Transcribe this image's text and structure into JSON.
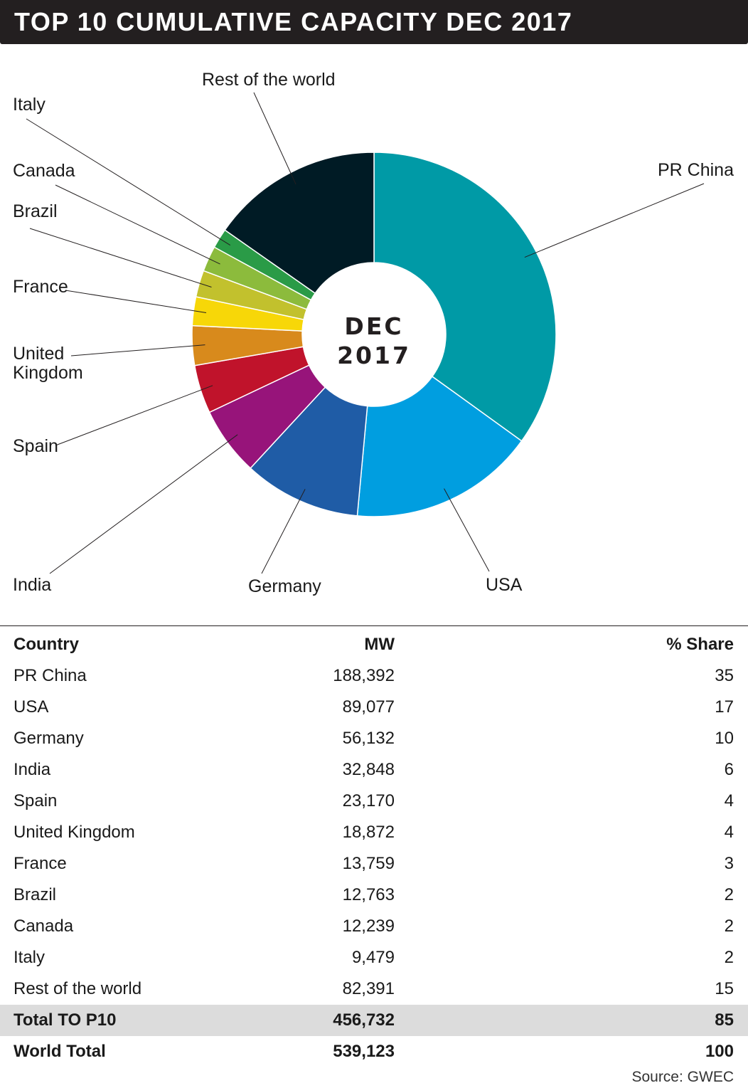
{
  "title": "TOP 10 CUMULATIVE CAPACITY DEC 2017",
  "chart_data": {
    "type": "pie",
    "donut": true,
    "center_label": [
      "DEC",
      "2017"
    ],
    "slices": [
      {
        "label": "PR China",
        "value": 188392,
        "color": "#009aa6"
      },
      {
        "label": "USA",
        "value": 89077,
        "color": "#009ee0"
      },
      {
        "label": "Germany",
        "value": 56132,
        "color": "#1f5ca6"
      },
      {
        "label": "India",
        "value": 32848,
        "color": "#97147a"
      },
      {
        "label": "Spain",
        "value": 23170,
        "color": "#c0132b"
      },
      {
        "label": "United Kingdom",
        "value": 18872,
        "color": "#d88a1c"
      },
      {
        "label": "France",
        "value": 13759,
        "color": "#f7d708"
      },
      {
        "label": "Brazil",
        "value": 12763,
        "color": "#c2c12d"
      },
      {
        "label": "Canada",
        "value": 12239,
        "color": "#8cbb3c"
      },
      {
        "label": "Italy",
        "value": 9479,
        "color": "#2a9b47"
      },
      {
        "label": "Rest of the world",
        "value": 82391,
        "color": "#001b25"
      }
    ]
  },
  "table": {
    "headers": {
      "country": "Country",
      "mw": "MW",
      "share": "% Share"
    },
    "rows": [
      {
        "country": "PR China",
        "mw": "188,392",
        "share": "35"
      },
      {
        "country": "USA",
        "mw": "89,077",
        "share": "17"
      },
      {
        "country": "Germany",
        "mw": "56,132",
        "share": "10"
      },
      {
        "country": "India",
        "mw": "32,848",
        "share": "6"
      },
      {
        "country": "Spain",
        "mw": "23,170",
        "share": "4"
      },
      {
        "country": "United Kingdom",
        "mw": "18,872",
        "share": "4"
      },
      {
        "country": "France",
        "mw": "13,759",
        "share": "3"
      },
      {
        "country": "Brazil",
        "mw": "12,763",
        "share": "2"
      },
      {
        "country": "Canada",
        "mw": "12,239",
        "share": "2"
      },
      {
        "country": "Italy",
        "mw": "9,479",
        "share": "2"
      },
      {
        "country": "Rest of the world",
        "mw": "82,391",
        "share": "15"
      }
    ],
    "total": {
      "country": "Total TO P10",
      "mw": "456,732",
      "share": "85"
    },
    "world": {
      "country": "World Total",
      "mw": "539,123",
      "share": "100"
    }
  },
  "source": "Source: GWEC"
}
